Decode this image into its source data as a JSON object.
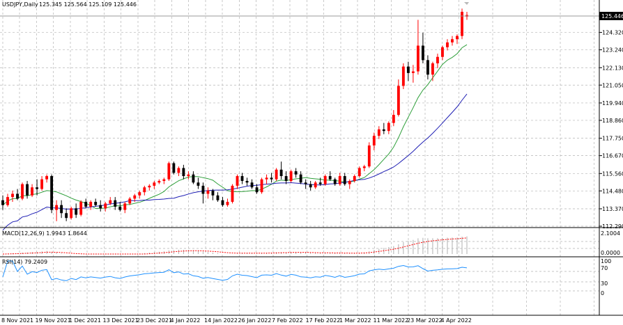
{
  "header": {
    "symbol": "USDJPY,Daily",
    "ohlc": "125.345 125.564 125.109 125.446"
  },
  "price_axis": {
    "current_price": "125.446",
    "labels": [
      "124.320",
      "123.240",
      "122.130",
      "121.050",
      "119.940",
      "118.860",
      "117.750",
      "116.670",
      "115.560",
      "114.480",
      "113.370",
      "112.290"
    ]
  },
  "macd": {
    "title": "MACD(12,26,9) 1.9943 1.8644",
    "top_label": "2.1004",
    "bottom_label": "0.0000"
  },
  "rsi": {
    "title": "RSI(14) 79.2409",
    "labels": [
      "100",
      "70",
      "30",
      "0"
    ]
  },
  "time_axis": {
    "labels": [
      "8 Nov 2021",
      "19 Nov 2021",
      "1 Dec 2021",
      "13 Dec 2021",
      "23 Dec 2021",
      "4 Jan 2022",
      "14 Jan 2022",
      "26 Jan 2022",
      "7 Feb 2022",
      "17 Feb 2022",
      "1 Mar 2022",
      "11 Mar 2022",
      "23 Mar 2022",
      "4 Apr 2022"
    ]
  },
  "colors": {
    "bull": "#ff0000",
    "bear": "#000000",
    "ma_fast": "#2e9f3a",
    "ma_slow": "#1f1fb4",
    "macd_signal": "#ff0000",
    "macd_hist": "#b0b0b0",
    "rsi_line": "#1e90ff",
    "grid": "#b4b4b4"
  },
  "chart_data": {
    "type": "candlestick",
    "ylim": [
      112.29,
      125.9
    ],
    "candles": [
      [
        113.9,
        114.2,
        113.3,
        113.6
      ],
      [
        113.6,
        114.3,
        113.5,
        114.1
      ],
      [
        114.1,
        114.5,
        113.8,
        114.3
      ],
      [
        114.3,
        114.6,
        113.9,
        114.0
      ],
      [
        114.0,
        115.0,
        113.9,
        114.9
      ],
      [
        114.9,
        115.1,
        114.0,
        114.2
      ],
      [
        114.2,
        114.9,
        114.1,
        114.7
      ],
      [
        114.7,
        115.2,
        114.2,
        114.6
      ],
      [
        114.6,
        115.4,
        114.5,
        115.2
      ],
      [
        115.2,
        115.5,
        115.0,
        115.4
      ],
      [
        115.4,
        115.5,
        113.1,
        113.3
      ],
      [
        113.3,
        113.9,
        112.6,
        113.6
      ],
      [
        113.6,
        113.9,
        112.8,
        113.1
      ],
      [
        113.1,
        113.4,
        112.6,
        112.8
      ],
      [
        112.8,
        113.5,
        112.7,
        113.4
      ],
      [
        113.4,
        113.7,
        112.8,
        113.0
      ],
      [
        113.0,
        113.9,
        112.9,
        113.8
      ],
      [
        113.8,
        114.0,
        113.4,
        113.5
      ],
      [
        113.5,
        113.9,
        113.3,
        113.8
      ],
      [
        113.8,
        114.0,
        113.5,
        113.6
      ],
      [
        113.6,
        113.9,
        113.2,
        113.4
      ],
      [
        113.4,
        113.8,
        113.2,
        113.7
      ],
      [
        113.7,
        114.1,
        113.6,
        113.9
      ],
      [
        113.9,
        114.1,
        113.3,
        113.5
      ],
      [
        113.5,
        113.8,
        113.2,
        113.3
      ],
      [
        113.3,
        113.8,
        113.1,
        113.7
      ],
      [
        113.7,
        114.1,
        113.6,
        114.0
      ],
      [
        114.0,
        114.3,
        113.8,
        114.2
      ],
      [
        114.2,
        114.5,
        114.0,
        114.4
      ],
      [
        114.4,
        114.8,
        114.2,
        114.7
      ],
      [
        114.7,
        114.9,
        114.5,
        114.8
      ],
      [
        114.8,
        115.1,
        114.6,
        115.0
      ],
      [
        115.0,
        115.2,
        114.9,
        115.1
      ],
      [
        115.1,
        115.3,
        114.9,
        115.2
      ],
      [
        115.2,
        116.3,
        115.1,
        116.2
      ],
      [
        116.2,
        116.3,
        115.5,
        115.6
      ],
      [
        115.6,
        116.0,
        115.4,
        115.9
      ],
      [
        115.9,
        116.1,
        115.2,
        115.4
      ],
      [
        115.4,
        115.7,
        115.2,
        115.5
      ],
      [
        115.5,
        115.7,
        114.9,
        115.0
      ],
      [
        115.0,
        115.3,
        114.6,
        114.8
      ],
      [
        114.8,
        115.0,
        113.7,
        114.3
      ],
      [
        114.3,
        114.7,
        114.0,
        114.5
      ],
      [
        114.5,
        114.6,
        113.9,
        114.2
      ],
      [
        114.2,
        114.4,
        113.8,
        113.9
      ],
      [
        113.9,
        114.1,
        113.5,
        113.6
      ],
      [
        113.6,
        114.0,
        113.5,
        113.8
      ],
      [
        113.8,
        114.9,
        113.7,
        114.8
      ],
      [
        114.8,
        115.5,
        114.6,
        115.4
      ],
      [
        115.4,
        115.6,
        114.9,
        115.1
      ],
      [
        115.1,
        115.3,
        114.8,
        115.0
      ],
      [
        115.0,
        115.2,
        114.6,
        114.7
      ],
      [
        114.7,
        114.9,
        114.3,
        114.4
      ],
      [
        114.4,
        115.3,
        114.3,
        115.2
      ],
      [
        115.2,
        115.5,
        114.9,
        115.3
      ],
      [
        115.3,
        115.6,
        115.0,
        115.2
      ],
      [
        115.2,
        115.9,
        115.1,
        115.8
      ],
      [
        115.8,
        116.3,
        115.2,
        115.4
      ],
      [
        115.4,
        115.7,
        114.9,
        115.1
      ],
      [
        115.1,
        115.8,
        115.0,
        115.7
      ],
      [
        115.7,
        115.9,
        115.3,
        115.5
      ],
      [
        115.5,
        115.7,
        114.9,
        115.0
      ],
      [
        115.0,
        115.2,
        114.6,
        114.9
      ],
      [
        114.9,
        115.1,
        114.5,
        114.7
      ],
      [
        114.7,
        115.1,
        114.6,
        115.0
      ],
      [
        115.0,
        115.3,
        114.8,
        114.9
      ],
      [
        114.9,
        115.5,
        114.8,
        115.4
      ],
      [
        115.4,
        115.7,
        115.1,
        115.2
      ],
      [
        115.2,
        115.3,
        114.8,
        114.9
      ],
      [
        114.9,
        115.6,
        114.8,
        115.4
      ],
      [
        115.4,
        115.6,
        114.8,
        114.9
      ],
      [
        114.9,
        115.2,
        114.6,
        115.1
      ],
      [
        115.1,
        115.5,
        115.0,
        115.4
      ],
      [
        115.4,
        116.0,
        115.3,
        115.9
      ],
      [
        115.9,
        116.1,
        115.7,
        116.0
      ],
      [
        116.0,
        117.5,
        115.9,
        117.3
      ],
      [
        117.3,
        118.1,
        117.0,
        117.9
      ],
      [
        117.9,
        118.5,
        117.7,
        118.3
      ],
      [
        118.3,
        118.7,
        118.0,
        118.2
      ],
      [
        118.2,
        118.8,
        118.0,
        118.7
      ],
      [
        118.7,
        119.5,
        118.5,
        119.2
      ],
      [
        119.2,
        121.4,
        119.1,
        121.0
      ],
      [
        121.0,
        122.4,
        120.8,
        122.2
      ],
      [
        122.2,
        122.5,
        121.3,
        121.8
      ],
      [
        121.8,
        122.3,
        121.2,
        121.9
      ],
      [
        121.9,
        125.1,
        121.7,
        123.5
      ],
      [
        123.5,
        124.3,
        122.4,
        122.6
      ],
      [
        122.6,
        122.9,
        121.4,
        121.7
      ],
      [
        121.7,
        122.5,
        121.3,
        122.4
      ],
      [
        122.4,
        123.0,
        122.1,
        122.8
      ],
      [
        122.8,
        123.5,
        122.6,
        123.4
      ],
      [
        123.4,
        123.9,
        123.2,
        123.7
      ],
      [
        123.7,
        124.1,
        123.5,
        123.9
      ],
      [
        123.9,
        124.2,
        123.6,
        124.1
      ],
      [
        124.1,
        125.8,
        123.9,
        125.6
      ],
      [
        125.3,
        125.6,
        125.1,
        125.4
      ]
    ]
  }
}
